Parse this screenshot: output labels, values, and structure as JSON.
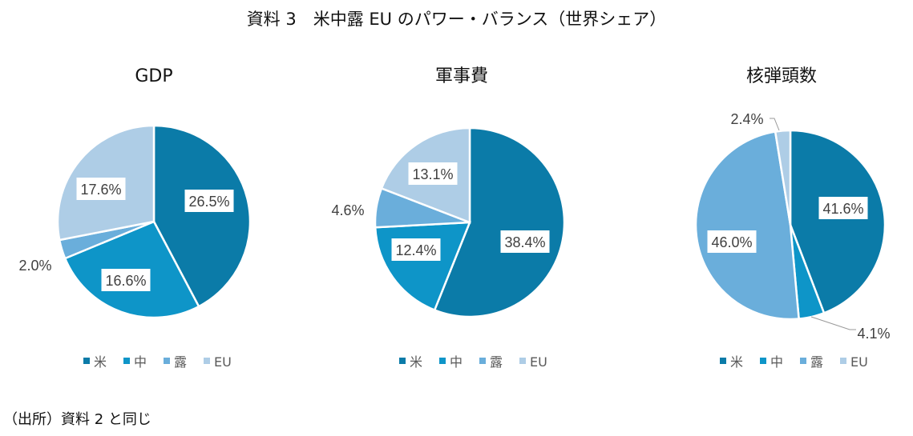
{
  "title": "資料 3　米中露 EU のパワー・バランス（世界シェア）",
  "source": "（出所）資料 2 と同じ",
  "legend": [
    "米",
    "中",
    "露",
    "EU"
  ],
  "colors": [
    "#0b7ba8",
    "#0e95c8",
    "#6aaedb",
    "#aecde6"
  ],
  "chart_data": [
    {
      "type": "pie",
      "title": "GDP",
      "categories": [
        "米",
        "中",
        "露",
        "EU"
      ],
      "values": [
        26.5,
        16.6,
        2.0,
        17.6
      ],
      "labels": [
        "26.5%",
        "16.6%",
        "2.0%",
        "17.6%"
      ]
    },
    {
      "type": "pie",
      "title": "軍事費",
      "categories": [
        "米",
        "中",
        "露",
        "EU"
      ],
      "values": [
        38.4,
        12.4,
        4.6,
        13.1
      ],
      "labels": [
        "38.4%",
        "12.4%",
        "4.6%",
        "13.1%"
      ]
    },
    {
      "type": "pie",
      "title": "核弾頭数",
      "categories": [
        "米",
        "中",
        "露",
        "EU"
      ],
      "values": [
        41.6,
        4.1,
        46.0,
        2.4
      ],
      "labels": [
        "41.6%",
        "4.1%",
        "46.0%",
        "2.4%"
      ]
    }
  ]
}
